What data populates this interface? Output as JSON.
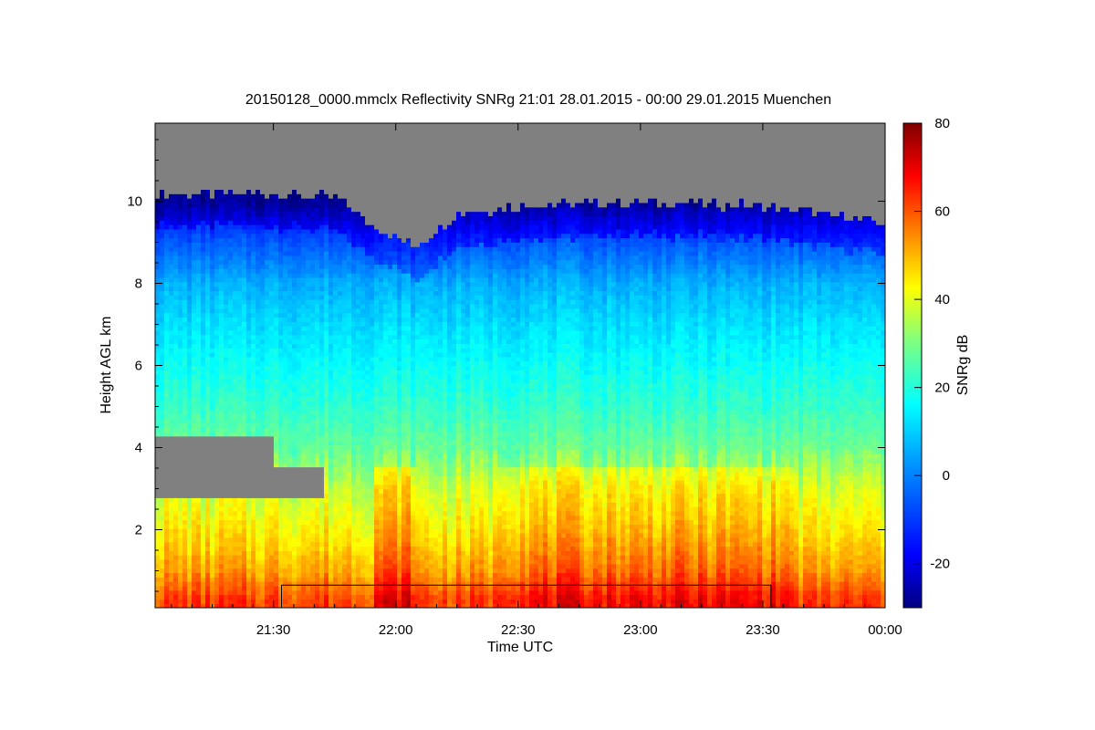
{
  "chart_data": {
    "type": "heatmap",
    "title": "20150128_0000.mmclx Reflectivity SNRg   21:01 28.01.2015 - 00:00 29.01.2015 Muenchen",
    "xlabel": "Time UTC",
    "ylabel": "Height AGL km",
    "xlim": [
      "21:01",
      "00:00"
    ],
    "ylim": [
      0.1,
      11.9
    ],
    "x_ticks": [
      "21:30",
      "22:00",
      "22:30",
      "23:00",
      "23:30",
      "00:00"
    ],
    "y_ticks": [
      2,
      4,
      6,
      8,
      10
    ],
    "colorbar": {
      "label": "SNRg dB",
      "range": [
        -30,
        80
      ],
      "ticks": [
        -20,
        0,
        20,
        40,
        60,
        80
      ],
      "colormap": [
        "#00007f",
        "#0000ff",
        "#007fff",
        "#00ffff",
        "#7fff7f",
        "#ffff00",
        "#ff7f00",
        "#ff0000",
        "#7f0000"
      ]
    },
    "no_signal_color": "#808080",
    "field": {
      "echo_top_km": [
        {
          "time": "21:01",
          "height": 10.2
        },
        {
          "time": "21:30",
          "height": 10.2
        },
        {
          "time": "21:45",
          "height": 10.1
        },
        {
          "time": "21:55",
          "height": 9.4
        },
        {
          "time": "22:05",
          "height": 8.9
        },
        {
          "time": "22:15",
          "height": 9.7
        },
        {
          "time": "22:30",
          "height": 9.9
        },
        {
          "time": "23:00",
          "height": 10.0
        },
        {
          "time": "23:30",
          "height": 9.9
        },
        {
          "time": "00:00",
          "height": 9.5
        }
      ],
      "low_gap_region": {
        "time": [
          "21:01",
          "21:42"
        ],
        "height": [
          2.8,
          4.3
        ]
      },
      "profile_snr_db_by_height": [
        {
          "height": 0.3,
          "snr": 62
        },
        {
          "height": 1.0,
          "snr": 52
        },
        {
          "height": 2.0,
          "snr": 44
        },
        {
          "height": 3.0,
          "snr": 38
        },
        {
          "height": 4.0,
          "snr": 28
        },
        {
          "height": 5.0,
          "snr": 22
        },
        {
          "height": 6.0,
          "snr": 17
        },
        {
          "height": 7.0,
          "snr": 12
        },
        {
          "height": 8.0,
          "snr": 6
        },
        {
          "height": 9.0,
          "snr": -6
        },
        {
          "height": 10.0,
          "snr": -20
        }
      ]
    },
    "annotation_box": {
      "time": [
        "21:32",
        "23:32"
      ],
      "height": [
        0.1,
        0.65
      ]
    },
    "grid": false
  }
}
